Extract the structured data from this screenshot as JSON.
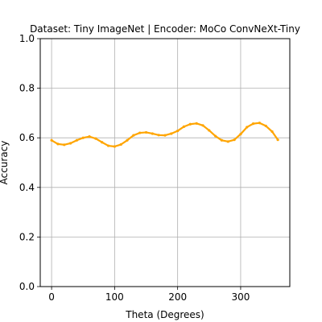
{
  "chart_data": {
    "type": "line",
    "title": "Dataset: Tiny ImageNet | Encoder: MoCo ConvNeXt-Tiny",
    "xlabel": "Theta (Degrees)",
    "ylabel": "Accuracy",
    "xlim": [
      -18,
      378
    ],
    "ylim": [
      0.0,
      1.0
    ],
    "xticks": [
      0,
      100,
      200,
      300
    ],
    "xtick_labels": [
      "0",
      "100",
      "200",
      "300"
    ],
    "yticks": [
      0.0,
      0.2,
      0.4,
      0.6,
      0.8,
      1.0
    ],
    "ytick_labels": [
      "0.0",
      "0.2",
      "0.4",
      "0.6",
      "0.8",
      "1.0"
    ],
    "grid": true,
    "series": [
      {
        "color": "#FFA500",
        "marker": "point",
        "x": [
          0,
          10,
          20,
          30,
          40,
          50,
          60,
          70,
          80,
          90,
          100,
          110,
          120,
          130,
          140,
          150,
          160,
          170,
          180,
          190,
          200,
          210,
          220,
          230,
          240,
          250,
          260,
          270,
          280,
          290,
          300,
          310,
          320,
          330,
          340,
          350,
          359
        ],
        "y": [
          0.59,
          0.575,
          0.572,
          0.578,
          0.59,
          0.6,
          0.605,
          0.597,
          0.582,
          0.568,
          0.565,
          0.573,
          0.59,
          0.61,
          0.62,
          0.622,
          0.617,
          0.611,
          0.61,
          0.617,
          0.628,
          0.645,
          0.655,
          0.658,
          0.65,
          0.63,
          0.607,
          0.59,
          0.585,
          0.592,
          0.615,
          0.643,
          0.657,
          0.66,
          0.648,
          0.625,
          0.592
        ]
      }
    ]
  }
}
